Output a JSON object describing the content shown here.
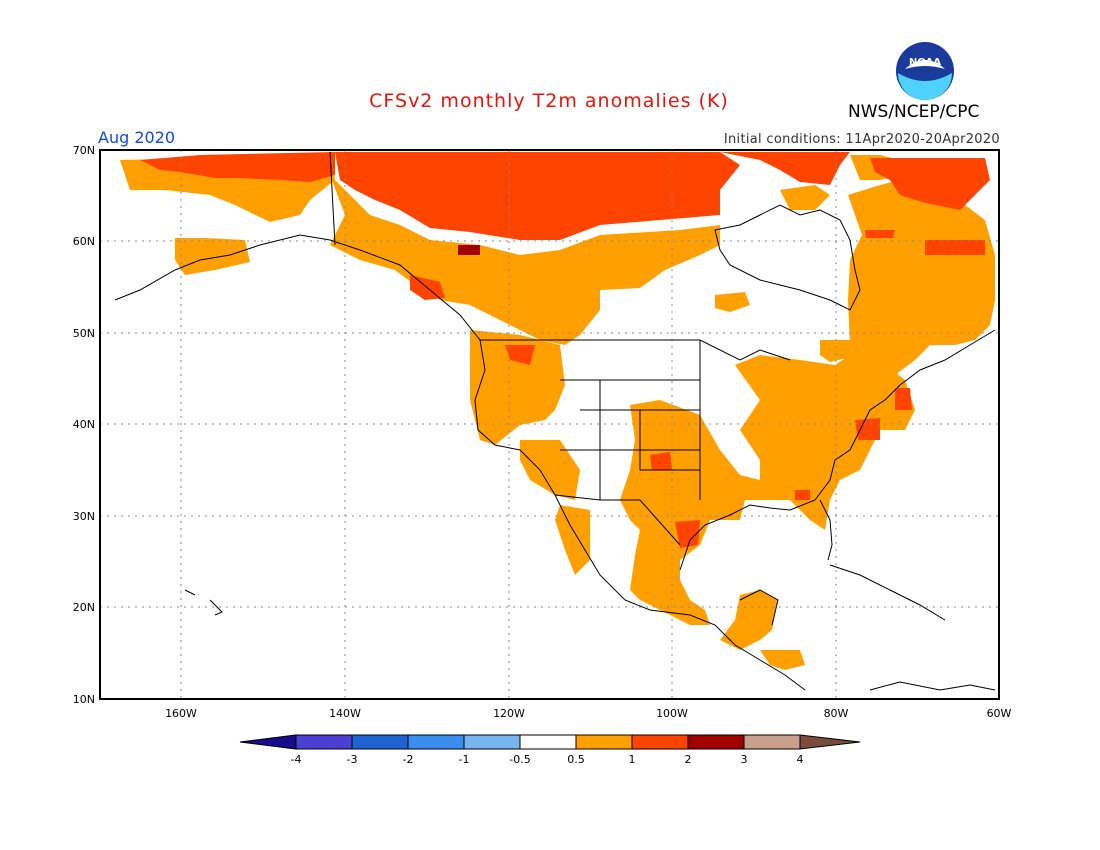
{
  "header": {
    "title": "CFSv2 monthly T2m anomalies (K)",
    "month": "Aug 2020",
    "initial_conditions": "Initial conditions: 11Apr2020-20Apr2020",
    "organization": "NWS/NCEP/CPC",
    "logo_text": "NOAA"
  },
  "map": {
    "lat_labels": [
      "70N",
      "60N",
      "50N",
      "40N",
      "30N",
      "20N",
      "10N"
    ],
    "lon_labels": [
      "160W",
      "140W",
      "120W",
      "100W",
      "80W",
      "60W"
    ],
    "region": "North America",
    "variable": "2-meter temperature anomaly",
    "units": "K"
  },
  "colorbar": {
    "tick_labels": [
      "-4",
      "-3",
      "-2",
      "-1",
      "-0.5",
      "0.5",
      "1",
      "2",
      "3",
      "4"
    ],
    "colors": [
      "#1a0a8c",
      "#4a3fd1",
      "#1e64d2",
      "#3c8cf0",
      "#78b4f0",
      "#ffffff",
      "#ffa000",
      "#ff4400",
      "#a00000",
      "#c8a08c",
      "#7a4c3c"
    ]
  }
}
